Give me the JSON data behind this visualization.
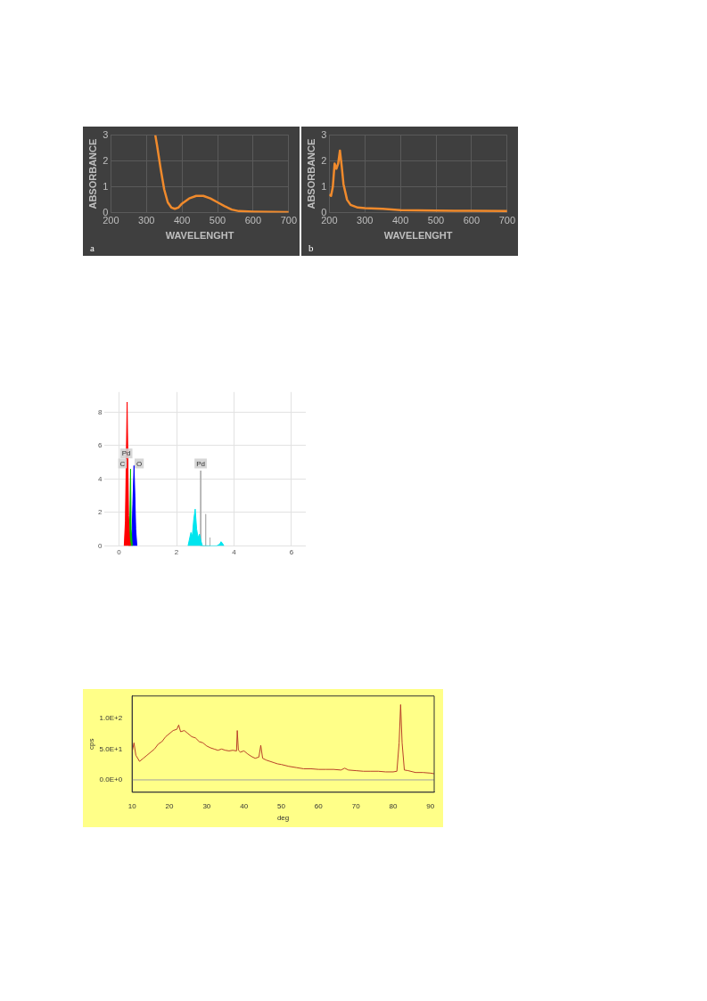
{
  "chart_data": [
    {
      "type": "line",
      "xlabel": "WAVELENGHT",
      "ylabel": "ABSORBANCE",
      "annotations": [
        "a"
      ],
      "xlim": [
        200,
        700
      ],
      "xticks": [
        200,
        300,
        400,
        500,
        600,
        700
      ],
      "ylim": [
        0,
        3
      ],
      "yticks": [
        0,
        1,
        2,
        3
      ],
      "grid": true,
      "legend": false,
      "series": [
        {
          "color": "#f08a2c",
          "x": [
            325,
            330,
            340,
            350,
            360,
            370,
            380,
            390,
            400,
            420,
            440,
            460,
            480,
            500,
            520,
            540,
            560,
            600,
            650,
            700
          ],
          "values": [
            3,
            2.6,
            1.7,
            0.9,
            0.4,
            0.2,
            0.15,
            0.2,
            0.35,
            0.55,
            0.65,
            0.65,
            0.55,
            0.4,
            0.25,
            0.12,
            0.06,
            0.04,
            0.03,
            0.02
          ]
        }
      ]
    },
    {
      "type": "line",
      "xlabel": "WAVELENGHT",
      "ylabel": "ABSORBANCE",
      "annotations": [
        "b"
      ],
      "xlim": [
        200,
        700
      ],
      "xticks": [
        200,
        300,
        400,
        500,
        600,
        700
      ],
      "ylim": [
        0,
        3
      ],
      "yticks": [
        0,
        1,
        2,
        3
      ],
      "grid": true,
      "legend": false,
      "series": [
        {
          "color": "#f08a2c",
          "x": [
            200,
            205,
            210,
            215,
            220,
            225,
            230,
            235,
            240,
            250,
            260,
            280,
            300,
            350,
            400,
            500,
            600,
            700
          ],
          "values": [
            0.7,
            0.65,
            1.0,
            1.9,
            1.7,
            1.9,
            2.4,
            1.8,
            1.1,
            0.5,
            0.3,
            0.2,
            0.18,
            0.15,
            0.1,
            0.08,
            0.07,
            0.06
          ]
        }
      ]
    },
    {
      "type": "area",
      "xlim": [
        -0.5,
        6.5
      ],
      "xticks": [
        0,
        2,
        4,
        6
      ],
      "ylim": [
        0,
        9.2
      ],
      "yticks": [
        0,
        2,
        4,
        6,
        8
      ],
      "grid": true,
      "legend": false,
      "annotations": [
        {
          "text": "Pd",
          "x": 0.25,
          "y": 5.5
        },
        {
          "text": "C",
          "x": 0.12,
          "y": 4.9
        },
        {
          "text": "O",
          "x": 0.7,
          "y": 4.9
        },
        {
          "text": "Pd",
          "x": 2.84,
          "y": 4.9
        }
      ],
      "series": [
        {
          "color": "#ff0000",
          "x": [
            0.18,
            0.22,
            0.25,
            0.28,
            0.3,
            0.33,
            0.36,
            0.4
          ],
          "values": [
            0,
            1.5,
            5,
            8.6,
            6,
            1.8,
            0.5,
            0
          ]
        },
        {
          "color": "#00c000",
          "x": [
            0.34,
            0.38,
            0.4,
            0.42,
            0.46
          ],
          "values": [
            0,
            2,
            4.6,
            1,
            0
          ]
        },
        {
          "color": "#0000ff",
          "x": [
            0.44,
            0.48,
            0.52,
            0.55,
            0.58,
            0.62
          ],
          "values": [
            0,
            2.5,
            4.8,
            3,
            1,
            0
          ]
        },
        {
          "color": "#00e5ee",
          "x": [
            2.4,
            2.5,
            2.55,
            2.6,
            2.65,
            2.7,
            2.75,
            2.8,
            2.85,
            2.9,
            3.0,
            3.4,
            3.5,
            3.55,
            3.6,
            3.65
          ],
          "values": [
            0,
            0.8,
            0.6,
            1.6,
            2.2,
            1.0,
            0.5,
            0.7,
            0.3,
            0,
            0,
            0,
            0.1,
            0.25,
            0.15,
            0
          ]
        },
        {
          "type": "line",
          "color": "#b0b0b0",
          "x": [
            2.83,
            2.84,
            2.85,
            3.0,
            3.01,
            3.02,
            3.15,
            3.16,
            3.17
          ],
          "values": [
            0,
            4.5,
            0,
            0,
            1.9,
            0,
            0,
            0.5,
            0
          ]
        }
      ]
    },
    {
      "type": "line",
      "xlabel": "deg",
      "ylabel": "cps",
      "xlim": [
        10,
        91
      ],
      "xticks": [
        10,
        20,
        30,
        40,
        50,
        60,
        70,
        80,
        90
      ],
      "ylim": [
        -20,
        136
      ],
      "yticks": [
        {
          "value": 0,
          "label": "0.0E+0"
        },
        {
          "value": 50,
          "label": "5.0E+1"
        },
        {
          "value": 100,
          "label": "1.0E+2"
        }
      ],
      "legend": false,
      "ref_lines": [
        {
          "axis": "y",
          "value": 0,
          "color": "#a0a0a0"
        }
      ],
      "series": [
        {
          "color": "#b8402a",
          "x": [
            10,
            10.5,
            11,
            12,
            13,
            14,
            15,
            16,
            17,
            18,
            19,
            20,
            21,
            22,
            22.5,
            23,
            24,
            25,
            26,
            27,
            28,
            29,
            30,
            31,
            32,
            33,
            34,
            35,
            36,
            37,
            38,
            38.2,
            38.5,
            39,
            40,
            41,
            42,
            43,
            44,
            44.5,
            45,
            46,
            47,
            48,
            49,
            50,
            52,
            54,
            56,
            58,
            60,
            62,
            64,
            66,
            67,
            68,
            70,
            72,
            74,
            76,
            78,
            80,
            81,
            81.6,
            82,
            82.4,
            83,
            84,
            86,
            88,
            90,
            91
          ],
          "values": [
            45,
            60,
            40,
            30,
            35,
            40,
            45,
            50,
            58,
            62,
            70,
            75,
            80,
            82,
            89,
            78,
            80,
            75,
            70,
            68,
            62,
            60,
            55,
            52,
            50,
            48,
            50,
            48,
            47,
            48,
            47,
            80,
            48,
            45,
            47,
            42,
            38,
            35,
            37,
            56,
            35,
            32,
            30,
            28,
            26,
            25,
            22,
            20,
            18,
            18,
            17,
            17,
            17,
            16,
            19,
            16,
            15,
            14,
            14,
            14,
            13,
            13,
            14,
            60,
            122,
            60,
            16,
            15,
            12,
            12,
            11,
            10
          ]
        }
      ]
    }
  ]
}
